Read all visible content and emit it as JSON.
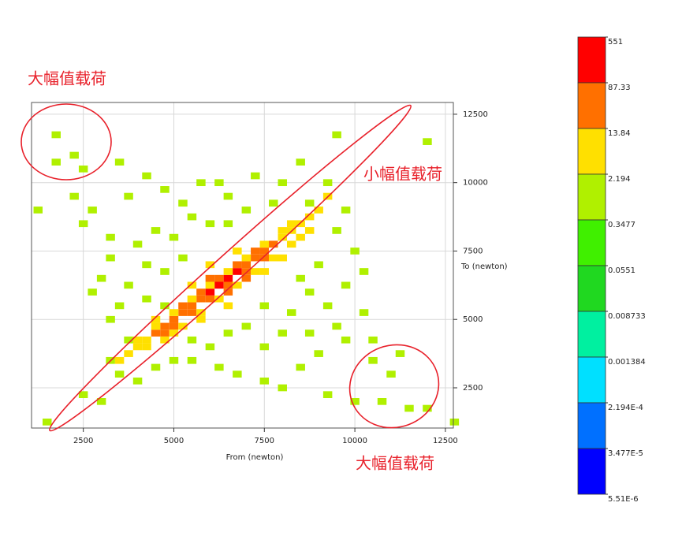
{
  "chart_data": {
    "type": "heatmap",
    "x_label": "From (newton)",
    "y_label": "To (newton)",
    "xlim": [
      1070,
      12720
    ],
    "ylim": [
      1030,
      12930
    ],
    "xticks": [
      2500,
      5000,
      7500,
      10000,
      12500
    ],
    "yticks": [
      2500,
      5000,
      7500,
      10000,
      12500
    ],
    "grid": true,
    "x": [
      6250,
      6500,
      6000,
      6750,
      4500,
      4750,
      5000,
      5250,
      5500,
      5750,
      7000,
      7250,
      7500,
      7750,
      5000,
      5500,
      6000,
      6500,
      7000,
      7500,
      5250,
      5750,
      6250,
      6750,
      7250,
      6500,
      6000,
      7000,
      4750,
      3500,
      3750,
      4000,
      4250,
      8000,
      8250,
      8500,
      8750,
      9000,
      9250,
      4250,
      4750,
      5250,
      5750,
      6250,
      6750,
      7250,
      7750,
      8250,
      8500,
      4000,
      4500,
      5000,
      5500,
      6000,
      6500,
      7000,
      7500,
      8000,
      8250,
      5000,
      5750,
      6500,
      7500,
      8000,
      6750,
      6000,
      5500,
      8750,
      4500,
      1500,
      2500,
      1750,
      2250,
      1750,
      2500,
      2250,
      1250,
      2500,
      3500,
      12000,
      9500,
      12750,
      11500,
      12000,
      10750,
      11250,
      10500,
      10000,
      3000,
      3250,
      3000,
      2750,
      3250,
      3750,
      4250,
      4750,
      5250,
      5750,
      6250,
      6500,
      7250,
      8000,
      8500,
      9250,
      9750,
      9500,
      10000,
      10250,
      9750,
      10250,
      9500,
      9750,
      9000,
      8500,
      8000,
      7500,
      6750,
      6250,
      5500,
      5000,
      4500,
      4000,
      3500,
      3750,
      3250,
      3500,
      3750,
      4250,
      4000,
      4500,
      5000,
      5500,
      6000,
      6500,
      7000,
      7750,
      8750,
      9000,
      8750,
      8250,
      8750,
      8000,
      7500,
      7000,
      6500,
      6000,
      5500,
      4750,
      4250,
      4750,
      5250,
      9250,
      8500,
      7500,
      3250,
      2750,
      10500,
      11000,
      9250
    ],
    "y": [
      6250,
      6500,
      6000,
      6750,
      4500,
      4750,
      5000,
      5250,
      5500,
      5750,
      7000,
      7250,
      7500,
      7750,
      4750,
      5250,
      5750,
      6250,
      6750,
      7250,
      5500,
      6000,
      6500,
      7000,
      7500,
      6000,
      6500,
      6500,
      4500,
      3500,
      3750,
      4000,
      4250,
      8000,
      8250,
      8500,
      8750,
      9000,
      9500,
      4000,
      4250,
      4750,
      5250,
      5750,
      6250,
      6750,
      7250,
      7750,
      8000,
      4250,
      4750,
      5250,
      5750,
      6250,
      6750,
      7250,
      7750,
      8250,
      8500,
      4500,
      5000,
      5500,
      6750,
      7250,
      7500,
      7000,
      6250,
      8250,
      5000,
      1250,
      2250,
      11750,
      11000,
      10750,
      10500,
      9500,
      9000,
      8500,
      10750,
      11500,
      11750,
      1250,
      1750,
      1750,
      2000,
      3750,
      3500,
      2000,
      2000,
      3500,
      6500,
      9000,
      8000,
      9500,
      10250,
      9750,
      9250,
      10000,
      10000,
      9500,
      10250,
      10000,
      10750,
      10000,
      9000,
      8250,
      7500,
      6750,
      6250,
      5250,
      4750,
      4250,
      3750,
      3250,
      2500,
      2750,
      3000,
      3250,
      3500,
      3500,
      3250,
      2750,
      3000,
      4250,
      5000,
      5500,
      6250,
      7000,
      7750,
      8250,
      8000,
      8750,
      8500,
      8500,
      9000,
      9250,
      9250,
      7000,
      6000,
      5250,
      4500,
      4500,
      4000,
      4750,
      4500,
      4000,
      4250,
      5500,
      5750,
      6750,
      7250,
      5500,
      6500,
      5500,
      7250,
      6000,
      4250,
      3000,
      2250
    ],
    "values": [
      551,
      120,
      95,
      90,
      18,
      25,
      35,
      45,
      60,
      75,
      70,
      50,
      30,
      16,
      20,
      40,
      65,
      80,
      55,
      22,
      30,
      50,
      70,
      45,
      20,
      25,
      28,
      30,
      16,
      4,
      6,
      8,
      11,
      12,
      9,
      7,
      5,
      3,
      3,
      5,
      7,
      9,
      12,
      13,
      12,
      10,
      8,
      6,
      4,
      5,
      8,
      10,
      12,
      13,
      12,
      9,
      7,
      5,
      4,
      4,
      5,
      4,
      6,
      3,
      4,
      3,
      5,
      3,
      3,
      1,
      1,
      1,
      1,
      1,
      1,
      1,
      1,
      1,
      1,
      1,
      1,
      1,
      1,
      1,
      1,
      1,
      1,
      1,
      1,
      1,
      1,
      1,
      1,
      2,
      1,
      2,
      1,
      2,
      1,
      2,
      1,
      1,
      1,
      1,
      1,
      2,
      1,
      1,
      2,
      1,
      2,
      1,
      2,
      1,
      1,
      1,
      2,
      1,
      2,
      2,
      1,
      1,
      1,
      2,
      1,
      2,
      1,
      1,
      1,
      2,
      1,
      2,
      1,
      2,
      1,
      1,
      1,
      2,
      1,
      2,
      1,
      2,
      1,
      2,
      1,
      2,
      2,
      2,
      2,
      2,
      2,
      1,
      2,
      2,
      1,
      1,
      1,
      1,
      1
    ],
    "colorbar": {
      "log": true,
      "ticks": [
        551,
        87.33,
        13.84,
        2.194,
        0.3477,
        0.0551,
        0.008733,
        0.001384,
        {
          "value": 0.0002194,
          "label": "2.194E-4"
        },
        {
          "value": 3.477e-05,
          "label": "3.477E-5"
        },
        {
          "value": 5.51e-06,
          "label": "5.51E-6"
        }
      ],
      "colors": [
        "#ff0000",
        "#ff7000",
        "#ffe000",
        "#b0f000",
        "#40f000",
        "#20d820",
        "#00f0a0",
        "#00e0ff",
        "#0070ff",
        "#0000ff"
      ]
    },
    "annotations": [
      "大幅值载荷",
      "小幅值载荷",
      "大幅值载荷"
    ]
  }
}
